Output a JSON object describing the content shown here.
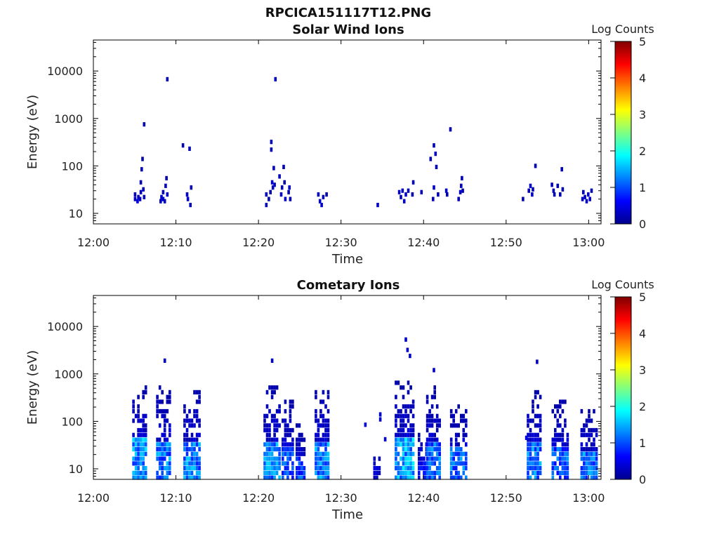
{
  "figure_title": "RPCICA151117T12.PNG",
  "colormap": [
    "#00008f",
    "#0000ff",
    "#0080ff",
    "#00ffff",
    "#80ff80",
    "#ffff00",
    "#ff8000",
    "#ff0000",
    "#800000"
  ],
  "chart_data": [
    {
      "type": "heatmap",
      "title": "Solar Wind Ions",
      "xlabel": "Time",
      "ylabel": "Energy (eV)",
      "x_ticks": [
        "12:00",
        "12:10",
        "12:20",
        "12:30",
        "12:40",
        "12:50",
        "13:00"
      ],
      "x_range_minutes": [
        0,
        61.5
      ],
      "y_ticks": [
        "10",
        "100",
        "1000",
        "10000"
      ],
      "y_scale": "log",
      "ylim": [
        6,
        45000
      ],
      "colorbar": {
        "label": "Log Counts",
        "range": [
          0,
          5
        ],
        "ticks": [
          "0",
          "1",
          "2",
          "3",
          "4",
          "5"
        ]
      },
      "grid": false,
      "cells": [
        [
          4.9,
          20,
          0.3
        ],
        [
          4.9,
          25,
          0.2
        ],
        [
          5.2,
          18,
          0.4
        ],
        [
          5.3,
          22,
          0.3
        ],
        [
          5.5,
          20,
          0.3
        ],
        [
          5.6,
          28,
          0.3
        ],
        [
          5.6,
          45,
          0.2
        ],
        [
          5.7,
          85,
          0.2
        ],
        [
          5.8,
          140,
          0.2
        ],
        [
          5.9,
          32,
          0.2
        ],
        [
          6.0,
          22,
          0.3
        ],
        [
          6.0,
          750,
          0.2
        ],
        [
          8.0,
          18,
          0.3
        ],
        [
          8.1,
          22,
          0.3
        ],
        [
          8.3,
          28,
          0.2
        ],
        [
          8.3,
          20,
          0.3
        ],
        [
          8.5,
          18,
          0.3
        ],
        [
          8.6,
          38,
          0.2
        ],
        [
          8.7,
          55,
          0.2
        ],
        [
          8.8,
          25,
          0.3
        ],
        [
          8.8,
          6700,
          0.2
        ],
        [
          10.7,
          270,
          0.2
        ],
        [
          11.2,
          25,
          0.3
        ],
        [
          11.3,
          20,
          0.3
        ],
        [
          11.5,
          230,
          0.2
        ],
        [
          11.6,
          15,
          0.3
        ],
        [
          11.7,
          35,
          0.2
        ],
        [
          20.8,
          15,
          0.3
        ],
        [
          20.8,
          25,
          0.3
        ],
        [
          21.1,
          20,
          0.2
        ],
        [
          21.3,
          28,
          0.2
        ],
        [
          21.4,
          320,
          0.2
        ],
        [
          21.4,
          220,
          0.2
        ],
        [
          21.5,
          45,
          0.3
        ],
        [
          21.6,
          35,
          0.3
        ],
        [
          21.7,
          90,
          0.2
        ],
        [
          21.8,
          40,
          0.3
        ],
        [
          21.9,
          6700,
          0.2
        ],
        [
          22.4,
          60,
          0.2
        ],
        [
          22.6,
          25,
          0.3
        ],
        [
          22.7,
          35,
          0.2
        ],
        [
          22.9,
          95,
          0.2
        ],
        [
          23.0,
          45,
          0.2
        ],
        [
          23.1,
          20,
          0.3
        ],
        [
          23.5,
          28,
          0.2
        ],
        [
          23.6,
          35,
          0.3
        ],
        [
          23.7,
          20,
          0.2
        ],
        [
          27.1,
          25,
          0.3
        ],
        [
          27.3,
          18,
          0.3
        ],
        [
          27.5,
          15,
          0.3
        ],
        [
          27.7,
          22,
          0.2
        ],
        [
          28.1,
          25,
          0.2
        ],
        [
          34.3,
          15,
          0.3
        ],
        [
          36.9,
          28,
          0.3
        ],
        [
          37.1,
          22,
          0.3
        ],
        [
          37.3,
          30,
          0.3
        ],
        [
          37.5,
          18,
          0.3
        ],
        [
          37.7,
          25,
          0.3
        ],
        [
          38.0,
          30,
          0.2
        ],
        [
          38.5,
          25,
          0.2
        ],
        [
          38.6,
          45,
          0.2
        ],
        [
          39.6,
          28,
          0.2
        ],
        [
          40.7,
          140,
          0.2
        ],
        [
          41.0,
          20,
          0.3
        ],
        [
          41.1,
          35,
          0.3
        ],
        [
          41.1,
          270,
          0.2
        ],
        [
          41.3,
          180,
          0.2
        ],
        [
          41.4,
          95,
          0.2
        ],
        [
          41.6,
          25,
          0.2
        ],
        [
          42.6,
          30,
          0.3
        ],
        [
          42.7,
          25,
          0.2
        ],
        [
          43.1,
          590,
          0.2
        ],
        [
          44.1,
          20,
          0.3
        ],
        [
          44.3,
          28,
          0.3
        ],
        [
          44.4,
          38,
          0.3
        ],
        [
          44.5,
          55,
          0.2
        ],
        [
          44.6,
          30,
          0.2
        ],
        [
          51.9,
          20,
          0.2
        ],
        [
          52.6,
          30,
          0.3
        ],
        [
          52.8,
          38,
          0.3
        ],
        [
          53.0,
          25,
          0.3
        ],
        [
          53.1,
          32,
          0.3
        ],
        [
          53.4,
          100,
          0.2
        ],
        [
          55.4,
          40,
          0.2
        ],
        [
          55.6,
          30,
          0.2
        ],
        [
          55.7,
          25,
          0.2
        ],
        [
          56.1,
          38,
          0.2
        ],
        [
          56.4,
          25,
          0.2
        ],
        [
          56.6,
          85,
          0.2
        ],
        [
          56.7,
          32,
          0.2
        ],
        [
          59.1,
          20,
          0.3
        ],
        [
          59.2,
          28,
          0.3
        ],
        [
          59.4,
          22,
          0.3
        ],
        [
          59.6,
          18,
          0.3
        ],
        [
          59.8,
          25,
          0.3
        ],
        [
          60.0,
          20,
          0.3
        ],
        [
          60.2,
          30,
          0.2
        ]
      ]
    },
    {
      "type": "heatmap",
      "title": "Cometary Ions",
      "xlabel": "Time",
      "ylabel": "Energy (eV)",
      "x_ticks": [
        "12:00",
        "12:10",
        "12:20",
        "12:30",
        "12:40",
        "12:50",
        "13:00"
      ],
      "x_range_minutes": [
        0,
        61.5
      ],
      "y_ticks": [
        "10",
        "100",
        "1000",
        "10000"
      ],
      "y_scale": "log",
      "ylim": [
        6,
        45000
      ],
      "colorbar": {
        "label": "Log Counts",
        "range": [
          0,
          5
        ],
        "ticks": [
          "0",
          "1",
          "2",
          "3",
          "4",
          "5"
        ]
      },
      "grid": false,
      "bursts": [
        [
          4.7,
          6.2,
          650,
          1.8
        ],
        [
          7.6,
          9.3,
          560,
          1.6
        ],
        [
          10.9,
          12.8,
          500,
          1.7
        ],
        [
          20.6,
          22.4,
          620,
          1.7
        ],
        [
          22.8,
          24.2,
          260,
          1.4
        ],
        [
          24.5,
          25.5,
          90,
          1.3
        ],
        [
          26.8,
          28.4,
          420,
          1.7
        ],
        [
          33.9,
          34.6,
          25,
          0.5
        ],
        [
          36.5,
          38.6,
          800,
          1.9
        ],
        [
          39.3,
          40.2,
          60,
          0.8
        ],
        [
          40.3,
          41.9,
          540,
          1.5
        ],
        [
          43.2,
          45.0,
          220,
          1.6
        ],
        [
          52.5,
          54.0,
          440,
          1.6
        ],
        [
          55.5,
          57.3,
          280,
          1.4
        ],
        [
          59.0,
          60.9,
          170,
          1.6
        ]
      ],
      "points": [
        [
          8.5,
          1900,
          0.3
        ],
        [
          21.5,
          1900,
          0.3
        ],
        [
          32.8,
          85,
          0.4
        ],
        [
          34.6,
          140,
          0.3
        ],
        [
          34.6,
          110,
          0.3
        ],
        [
          35.2,
          42,
          0.4
        ],
        [
          37.7,
          5300,
          0.3
        ],
        [
          37.9,
          3200,
          0.3
        ],
        [
          38.2,
          2400,
          0.3
        ],
        [
          41.1,
          1200,
          0.3
        ],
        [
          53.6,
          1800,
          0.3
        ],
        [
          52.3,
          45,
          0.5
        ]
      ]
    }
  ]
}
